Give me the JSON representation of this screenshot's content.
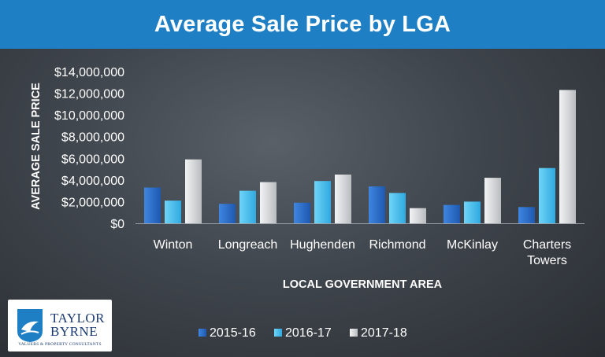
{
  "title": "Average Sale Price by LGA",
  "logo": {
    "line1": "TAYLOR",
    "line2": "BYRNE",
    "tagline": "VALUERS & PROPERTY CONSULTANTS"
  },
  "colors": {
    "header": "#1f7fc4",
    "series": [
      "#2b6fc9",
      "#45c0ec",
      "#d6d8da"
    ]
  },
  "chart_data": {
    "type": "bar",
    "title": "Average Sale Price by LGA",
    "xlabel": "LOCAL GOVERNMENT AREA",
    "ylabel": "AVERAGE SALE PRICE",
    "ylim": [
      0,
      14000000
    ],
    "yticks": [
      {
        "value": 0,
        "label": "$0"
      },
      {
        "value": 2000000,
        "label": "$2,000,000"
      },
      {
        "value": 4000000,
        "label": "$4,000,000"
      },
      {
        "value": 6000000,
        "label": "$6,000,000"
      },
      {
        "value": 8000000,
        "label": "$8,000,000"
      },
      {
        "value": 10000000,
        "label": "$10,000,000"
      },
      {
        "value": 12000000,
        "label": "$12,000,000"
      },
      {
        "value": 14000000,
        "label": "$14,000,000"
      }
    ],
    "categories": [
      [
        "Winton"
      ],
      [
        "Longreach"
      ],
      [
        "Hughenden"
      ],
      [
        "Richmond"
      ],
      [
        "McKinlay"
      ],
      [
        "Charters",
        "Towers"
      ]
    ],
    "series": [
      {
        "name": "2015-16",
        "values": [
          3300000,
          1800000,
          1900000,
          3400000,
          1700000,
          1500000
        ]
      },
      {
        "name": "2016-17",
        "values": [
          2100000,
          3000000,
          3900000,
          2800000,
          2000000,
          5100000
        ]
      },
      {
        "name": "2017-18",
        "values": [
          5900000,
          3800000,
          4500000,
          1400000,
          4200000,
          12300000
        ]
      }
    ],
    "legend_position": "bottom",
    "grid": false
  }
}
